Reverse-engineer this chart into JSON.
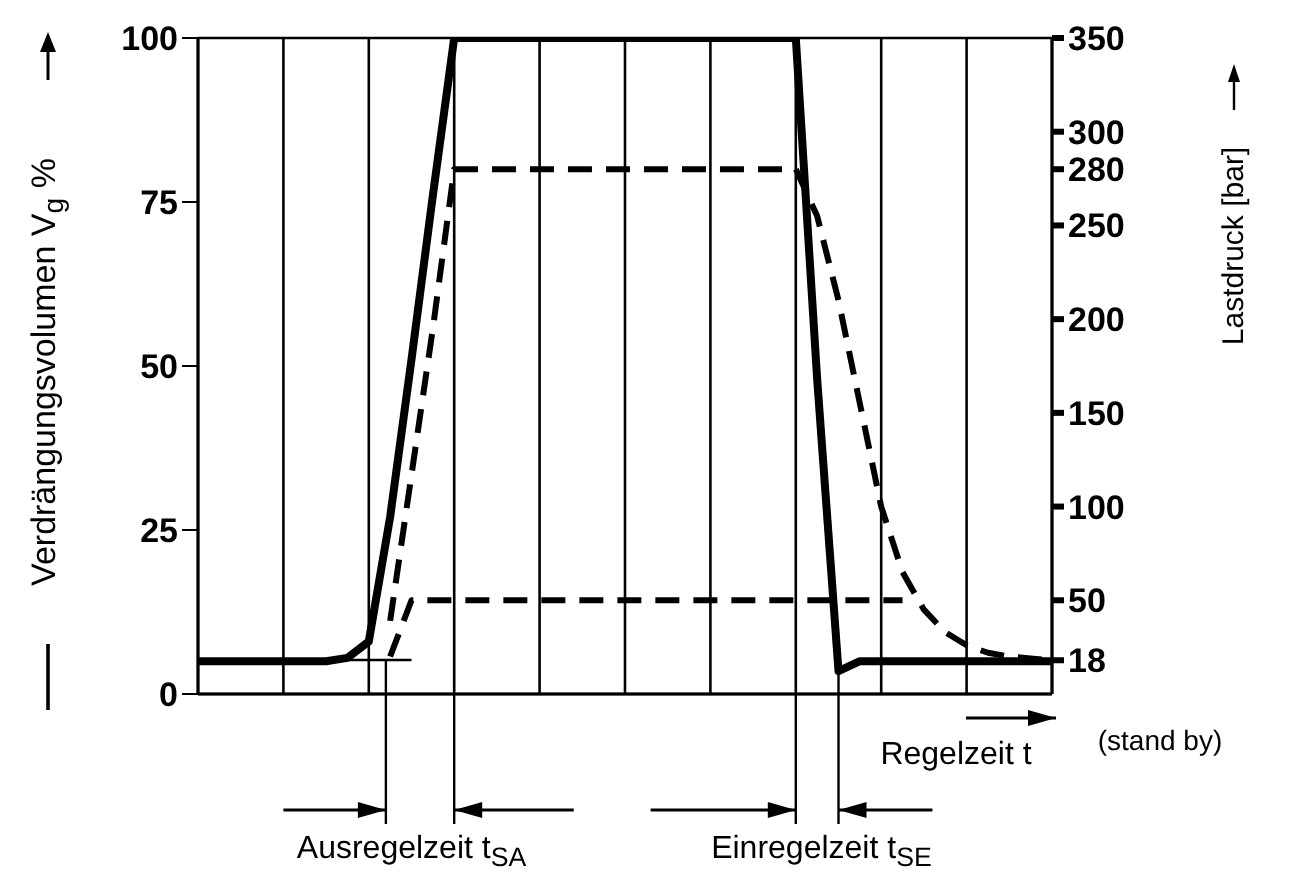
{
  "chart_data": {
    "type": "line",
    "xlabel": "Regelzeit t",
    "ylabel": "Verdrängungsvolumen V$_{g}$ %",
    "y2label": "Lastdruck [bar]",
    "annotations": [
      "Ausregelzeit t$_{SA}$",
      "Einregelzeit t$_{SE}$",
      "(stand by)"
    ],
    "categories": [
      null,
      null,
      null,
      null,
      null,
      null,
      null,
      null,
      null,
      null,
      null,
      null,
      null,
      null,
      null,
      null,
      null,
      null,
      null,
      null,
      null,
      null,
      null,
      null,
      null,
      null,
      null,
      null,
      null,
      null,
      null,
      null,
      null,
      null,
      null,
      null,
      null,
      null,
      null,
      null,
      null
    ],
    "series": [
      {
        "color": "#000000",
        "line_style": "solid",
        "values": [
          5,
          5,
          5,
          5,
          5,
          5,
          5,
          5.5,
          8,
          27,
          51,
          76,
          100,
          100,
          100,
          100,
          100,
          100,
          100,
          100,
          100,
          100,
          100,
          100,
          100,
          100,
          100,
          100,
          100,
          48,
          3.5,
          5,
          5,
          5,
          5,
          5,
          5,
          5,
          5,
          5,
          5
        ]
      },
      {
        "color": "#000000",
        "line_style": "dashed",
        "axis": "y2",
        "values": [
          null,
          null,
          null,
          null,
          null,
          null,
          null,
          null,
          null,
          39,
          117,
          195,
          280,
          280,
          280,
          280,
          280,
          280,
          280,
          280,
          280,
          280,
          280,
          280,
          280,
          280,
          280,
          280,
          280,
          255,
          210,
          155,
          100,
          65,
          45,
          33,
          26,
          22,
          20,
          19,
          18
        ]
      },
      {
        "color": "#000000",
        "line_style": "dashed",
        "axis": "y2",
        "values": [
          null,
          null,
          null,
          null,
          null,
          null,
          null,
          null,
          null,
          20,
          50,
          50,
          50,
          50,
          50,
          50,
          50,
          50,
          50,
          50,
          50,
          50,
          50,
          50,
          50,
          50,
          50,
          50,
          50,
          50,
          50,
          50,
          50,
          50,
          null,
          null,
          null,
          null,
          null,
          null,
          null
        ]
      }
    ],
    "ylim": [
      0,
      100
    ],
    "yticks": [
      0,
      25,
      50,
      75,
      100
    ],
    "y2lim": [
      0,
      350
    ],
    "y2ticks": [
      18,
      50,
      100,
      150,
      200,
      250,
      280,
      300,
      350
    ],
    "grid": true,
    "marker": "none"
  }
}
